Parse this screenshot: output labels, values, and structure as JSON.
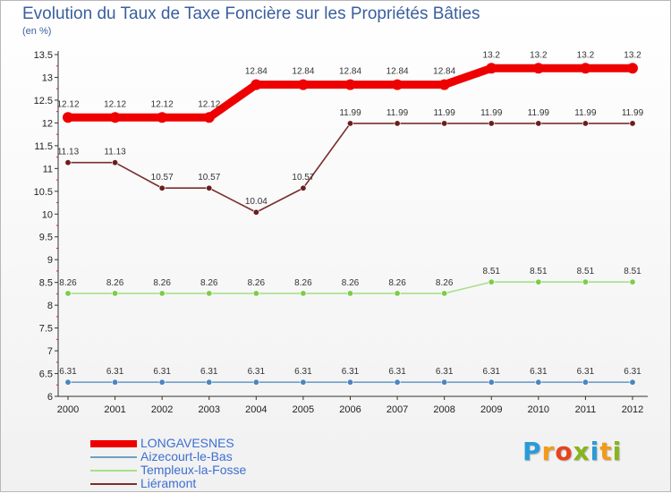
{
  "title": "Evolution du Taux de Taxe Foncière sur les Propriétés Bâties",
  "subtitle": "(en %)",
  "brand": {
    "letters": [
      "P",
      "r",
      "o",
      "x",
      "i",
      "t",
      "i"
    ],
    "colors": [
      "#2a9bd8",
      "#f39a1b",
      "#e8421e",
      "#86b51d",
      "#2a9bd8",
      "#f39a1b",
      "#86b51d"
    ]
  },
  "chart_data": {
    "type": "line",
    "title": "Evolution du Taux de Taxe Foncière sur les Propriétés Bâties",
    "ylabel": "(en %)",
    "xlabel": "",
    "ylim": [
      6,
      13.5
    ],
    "yticks": [
      "6",
      "6.5",
      "7",
      "7.5",
      "8",
      "8.5",
      "9",
      "9.5",
      "10",
      "10.5",
      "11",
      "11.5",
      "12",
      "12.5",
      "13",
      "13.5"
    ],
    "categories": [
      "2000",
      "2001",
      "2002",
      "2003",
      "2004",
      "2005",
      "2006",
      "2007",
      "2008",
      "2009",
      "2010",
      "2011",
      "2012"
    ],
    "series": [
      {
        "name": "LONGAVESNES",
        "color": "#ee0000",
        "emphasis": true,
        "values": [
          12.12,
          12.12,
          12.12,
          12.12,
          12.84,
          12.84,
          12.84,
          12.84,
          12.84,
          13.2,
          13.2,
          13.2,
          13.2
        ],
        "labels": [
          "12.12",
          "12.12",
          "12.12",
          "12.12",
          "12.84",
          "12.84",
          "12.84",
          "12.84",
          "12.84",
          "13.2",
          "13.2",
          "13.2",
          "13.2"
        ]
      },
      {
        "name": "Aizecourt-le-Bas",
        "color": "#6e9fc8",
        "marker": "#4a86c0",
        "emphasis": false,
        "values": [
          6.31,
          6.31,
          6.31,
          6.31,
          6.31,
          6.31,
          6.31,
          6.31,
          6.31,
          6.31,
          6.31,
          6.31,
          6.31
        ],
        "labels": [
          "6.31",
          "6.31",
          "6.31",
          "6.31",
          "6.31",
          "6.31",
          "6.31",
          "6.31",
          "6.31",
          "6.31",
          "6.31",
          "6.31",
          "6.31"
        ]
      },
      {
        "name": "Templeux-la-Fosse",
        "color": "#a8e08a",
        "marker": "#7ccc48",
        "emphasis": false,
        "values": [
          8.26,
          8.26,
          8.26,
          8.26,
          8.26,
          8.26,
          8.26,
          8.26,
          8.26,
          8.51,
          8.51,
          8.51,
          8.51
        ],
        "labels": [
          "8.26",
          "8.26",
          "8.26",
          "8.26",
          "8.26",
          "8.26",
          "8.26",
          "8.26",
          "8.26",
          "8.51",
          "8.51",
          "8.51",
          "8.51"
        ]
      },
      {
        "name": "Liéramont",
        "color": "#7a2e2e",
        "marker": "#6b1d1d",
        "emphasis": false,
        "values": [
          11.13,
          11.13,
          10.57,
          10.57,
          10.04,
          10.57,
          11.99,
          11.99,
          11.99,
          11.99,
          11.99,
          11.99,
          11.99
        ],
        "labels": [
          "11.13",
          "11.13",
          "10.57",
          "10.57",
          "10.04",
          "10.57",
          "11.99",
          "11.99",
          "11.99",
          "11.99",
          "11.99",
          "11.99",
          "11.99"
        ]
      }
    ],
    "legend_position": "bottom-left",
    "grid": false
  }
}
